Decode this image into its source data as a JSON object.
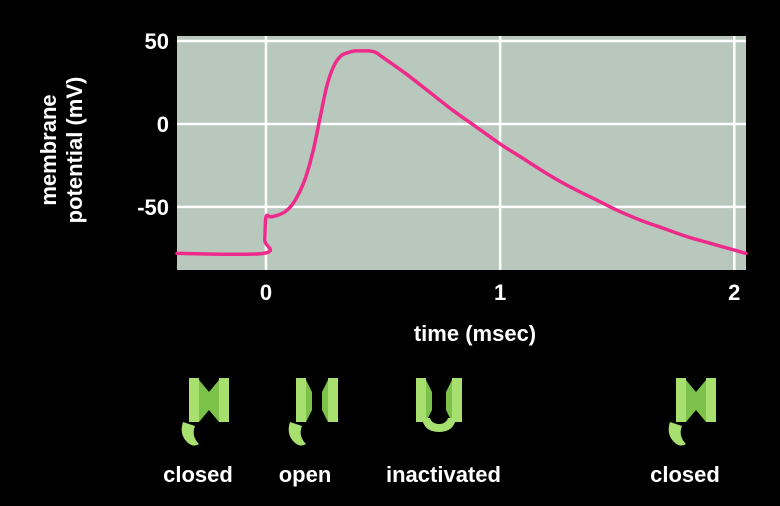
{
  "chart_data": {
    "type": "line",
    "title": "",
    "xlabel": "time (msec)",
    "ylabel_lines": [
      "membrane",
      "potential (mV)"
    ],
    "xlim": [
      -0.38,
      2.05
    ],
    "ylim": [
      -88,
      53
    ],
    "x_ticks": [
      0,
      1,
      2
    ],
    "x_tick_labels": [
      "0",
      "1",
      "2"
    ],
    "y_ticks": [
      -50,
      0,
      50
    ],
    "y_tick_labels": [
      "-50",
      "0",
      "50"
    ],
    "grid": true,
    "plot_background": "#b8c8bc",
    "series": [
      {
        "color": "#ee2b8a",
        "x": [
          -0.38,
          -0.01,
          -0.005,
          0.0,
          0.02,
          0.05,
          0.08,
          0.11,
          0.14,
          0.17,
          0.2,
          0.23,
          0.26,
          0.29,
          0.32,
          0.35,
          0.38,
          0.41,
          0.44,
          0.47,
          0.5,
          0.6,
          0.7,
          0.8,
          0.9,
          1.0,
          1.1,
          1.2,
          1.3,
          1.4,
          1.5,
          1.6,
          1.7,
          1.8,
          1.9,
          2.0,
          2.05
        ],
        "y": [
          -78,
          -78,
          -70,
          -56,
          -56,
          -55,
          -53,
          -49,
          -42,
          -32,
          -17,
          3,
          23,
          35,
          41,
          43,
          44,
          44,
          44,
          43,
          40,
          30,
          19,
          8,
          -2,
          -12,
          -21,
          -30,
          -38,
          -45,
          -52,
          -58,
          -63,
          -68,
          -72,
          -76,
          -78
        ]
      }
    ]
  },
  "channel_states": [
    {
      "label": "closed",
      "state": "closed"
    },
    {
      "label": "open",
      "state": "open"
    },
    {
      "label": "inactivated",
      "state": "inactivated"
    },
    {
      "label": "closed",
      "state": "closed"
    }
  ],
  "colors": {
    "background": "#000000",
    "plot_background": "#b8c8bc",
    "grid": "#ffffff",
    "trace": "#ee2b8a",
    "channel_light": "#a8e070",
    "channel_dark": "#7cc24a"
  }
}
